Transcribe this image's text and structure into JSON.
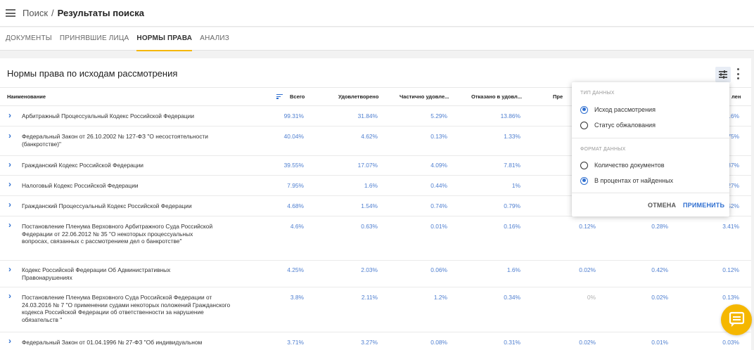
{
  "breadcrumb": {
    "root": "Поиск",
    "separator": "/",
    "current": "Результаты поиска"
  },
  "tabs": [
    {
      "label": "ДОКУМЕНТЫ",
      "active": false
    },
    {
      "label": "ПРИНЯВШИЕ ЛИЦА",
      "active": false
    },
    {
      "label": "НОРМЫ ПРАВА",
      "active": true
    },
    {
      "label": "АНАЛИЗ",
      "active": false
    }
  ],
  "card": {
    "title": "Нормы права по исходам рассмотрения"
  },
  "columns": [
    "Наименование",
    "Всего",
    "Удовлетворено",
    "Частично удовле...",
    "Отказано в удовл...",
    "Пре",
    "лен"
  ],
  "rows": [
    {
      "name": "Арбитражный Процессуальный Кодекс Российской Федерации",
      "values": [
        "99.31%",
        "31.84%",
        "5.29%",
        "13.86%",
        "",
        "",
        ".6%"
      ]
    },
    {
      "name": "Федеральный Закон от 26.10.2002 № 127-ФЗ \"О несостоятельности (банкротстве)\"",
      "values": [
        "40.04%",
        "4.62%",
        "0.13%",
        "1.33%",
        "",
        "",
        "75%"
      ]
    },
    {
      "name": "Гражданский Кодекс Российской Федерации",
      "values": [
        "39.55%",
        "17.07%",
        "4.09%",
        "7.81%",
        "",
        "",
        "37%"
      ]
    },
    {
      "name": "Налоговый Кодекс Российской Федерации",
      "values": [
        "7.95%",
        "1.6%",
        "0.44%",
        "1%",
        "",
        "",
        "27%"
      ]
    },
    {
      "name": "Гражданский Процессуальный Кодекс Российской Федерации",
      "values": [
        "4.68%",
        "1.54%",
        "0.74%",
        "0.79%",
        "",
        "",
        "52%"
      ]
    },
    {
      "name": "Постановление Пленума Верховного Арбитражного Суда Российской Федерации от 22.06.2012 № 35 \"О некоторых процессуальных вопросах, связанных с рассмотрением дел о банкротстве\"",
      "values": [
        "4.6%",
        "0.63%",
        "0.01%",
        "0.16%",
        "0.12%",
        "0.28%",
        "3.41%"
      ]
    },
    {
      "name": "Кодекс Российской Федерации Об Административных Правонарушениях",
      "values": [
        "4.25%",
        "2.03%",
        "0.06%",
        "1.6%",
        "0.02%",
        "0.42%",
        "0.12%"
      ]
    },
    {
      "name": "Постановление Пленума Верховного Суда Российской Федерации от 24.03.2016 № 7 \"О применении судами некоторых положений Гражданского кодекса Российской Федерации об ответственности за нарушение обязательств \"",
      "values": [
        "3.8%",
        "2.11%",
        "1.2%",
        "0.34%",
        "0%",
        "0.02%",
        "0.13%"
      ]
    },
    {
      "name": "Федеральный Закон от 01.04.1996 № 27-ФЗ \"Об индивидуальном",
      "values": [
        "3.71%",
        "3.27%",
        "0.08%",
        "0.31%",
        "0.02%",
        "0.01%",
        "0.03%"
      ]
    }
  ],
  "popup": {
    "section1": "ТИП ДАННЫХ",
    "option1": "Исход рассмотрения",
    "option2": "Статус обжалования",
    "section2": "ФОРМАТ ДАННЫХ",
    "option3": "Количество документов",
    "option4": "В процентах от найденных",
    "cancel": "ОТМЕНА",
    "apply": "ПРИМЕНИТЬ"
  },
  "colors": {
    "accent": "#f5b700",
    "link": "#2f6fd0",
    "value": "#4f7fd0"
  }
}
